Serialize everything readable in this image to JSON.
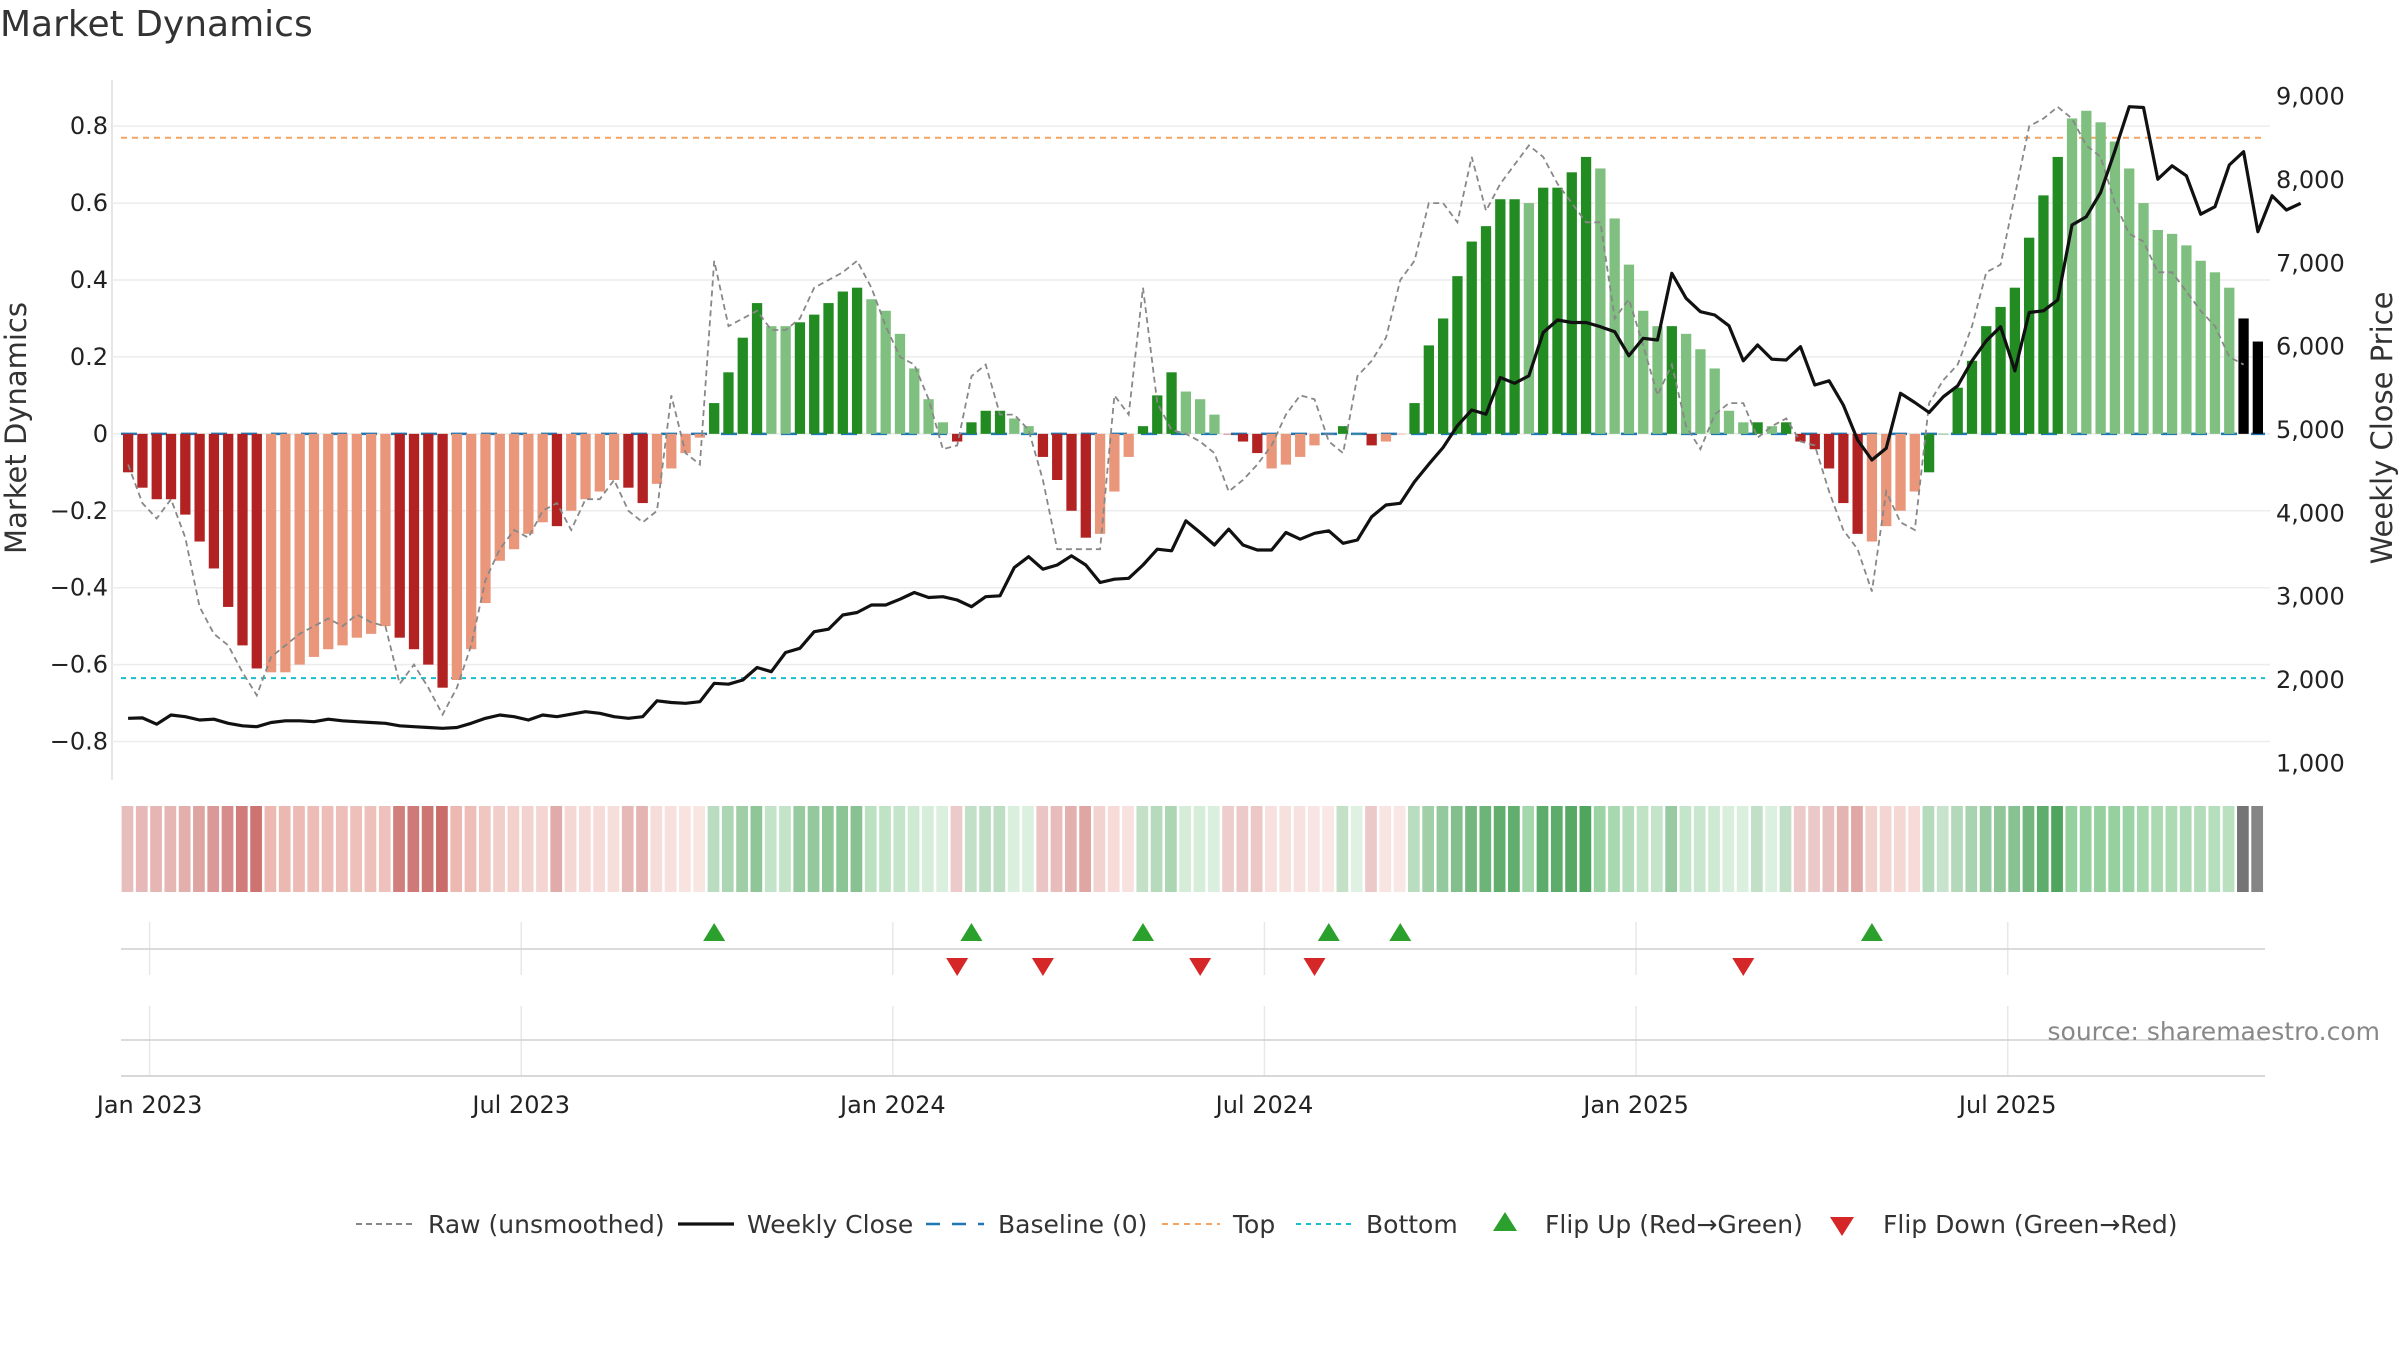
{
  "title": "Market Dynamics",
  "source_note": "source: sharemaestro.com",
  "chart_data": {
    "type": "bar",
    "title": "Market Dynamics",
    "ylabel": "Market Dynamics",
    "y2label": "Weekly Close Price",
    "ylim": [
      -0.9,
      0.92
    ],
    "y2lim": [
      800,
      9200
    ],
    "y_ticks": [
      "0.8",
      "0.6",
      "0.4",
      "0.2",
      "0",
      "−0.2",
      "−0.4",
      "−0.6",
      "−0.8"
    ],
    "y_tick_values": [
      0.8,
      0.6,
      0.4,
      0.2,
      0,
      -0.2,
      -0.4,
      -0.6,
      -0.8
    ],
    "y2_ticks": [
      "9,000",
      "8,000",
      "7,000",
      "6,000",
      "5,000",
      "4,000",
      "3,000",
      "2,000",
      "1,000"
    ],
    "y2_tick_values": [
      9000,
      8000,
      7000,
      6000,
      5000,
      4000,
      3000,
      2000,
      1000
    ],
    "x_ticks": [
      "Jan 2023",
      "Jul 2023",
      "Jan 2024",
      "Jul 2024",
      "Jan 2025",
      "Jul 2025"
    ],
    "x_tick_weeks": [
      2,
      28,
      54,
      80,
      106,
      132
    ],
    "top_level": 0.77,
    "bottom_level": -0.635,
    "grid": true,
    "legend_position": "bottom",
    "colors": {
      "strong_red": "#b22222",
      "light_red": "#e9967a",
      "strong_green": "#228b22",
      "light_green": "#7fbf7f",
      "close_line": "#111111",
      "raw_line": "#888888",
      "baseline": "#1f77b4",
      "top": "#f4a460",
      "bottom": "#17becf",
      "flip_up": "#2ca02c",
      "flip_down": "#d62728"
    },
    "series": [
      {
        "name": "Market Dynamics",
        "values": [
          -0.1,
          -0.14,
          -0.17,
          -0.17,
          -0.21,
          -0.28,
          -0.35,
          -0.45,
          -0.55,
          -0.61,
          -0.62,
          -0.62,
          -0.6,
          -0.58,
          -0.56,
          -0.55,
          -0.53,
          -0.52,
          -0.5,
          -0.53,
          -0.56,
          -0.6,
          -0.66,
          -0.64,
          -0.56,
          -0.44,
          -0.33,
          -0.3,
          -0.26,
          -0.23,
          -0.24,
          -0.2,
          -0.17,
          -0.15,
          -0.12,
          -0.14,
          -0.18,
          -0.13,
          -0.09,
          -0.05,
          -0.01,
          0.08,
          0.16,
          0.25,
          0.34,
          0.28,
          0.28,
          0.29,
          0.31,
          0.34,
          0.37,
          0.38,
          0.35,
          0.32,
          0.26,
          0.17,
          0.09,
          0.03,
          -0.02,
          0.03,
          0.06,
          0.06,
          0.04,
          0.02,
          -0.06,
          -0.12,
          -0.2,
          -0.27,
          -0.26,
          -0.15,
          -0.06,
          0.02,
          0.1,
          0.16,
          0.11,
          0.09,
          0.05,
          0.0,
          -0.02,
          -0.05,
          -0.09,
          -0.08,
          -0.06,
          -0.03,
          0.0,
          0.02,
          0.0,
          -0.03,
          -0.02,
          0.0,
          0.08,
          0.23,
          0.3,
          0.41,
          0.5,
          0.54,
          0.61,
          0.61,
          0.6,
          0.64,
          0.64,
          0.68,
          0.72,
          0.69,
          0.56,
          0.44,
          0.32,
          0.28,
          0.28,
          0.26,
          0.22,
          0.17,
          0.06,
          0.03,
          0.03,
          0.02,
          0.03,
          -0.02,
          -0.04,
          -0.09,
          -0.18,
          -0.26,
          -0.28,
          -0.24,
          -0.2,
          -0.15,
          -0.1,
          0.0,
          0.12,
          0.19,
          0.28,
          0.33,
          0.38,
          0.51,
          0.62,
          0.72,
          0.82,
          0.84,
          0.81,
          0.76,
          0.69,
          0.6,
          0.53,
          0.52,
          0.49,
          0.45,
          0.42,
          0.38,
          0.3,
          0.24
        ],
        "colors": [
          "strong_red",
          "strong_red",
          "strong_red",
          "strong_red",
          "strong_red",
          "strong_red",
          "strong_red",
          "strong_red",
          "strong_red",
          "strong_red",
          "light_red",
          "light_red",
          "light_red",
          "light_red",
          "light_red",
          "light_red",
          "light_red",
          "light_red",
          "light_red",
          "strong_red",
          "strong_red",
          "strong_red",
          "strong_red",
          "light_red",
          "light_red",
          "light_red",
          "light_red",
          "light_red",
          "light_red",
          "light_red",
          "strong_red",
          "light_red",
          "light_red",
          "light_red",
          "light_red",
          "strong_red",
          "strong_red",
          "light_red",
          "light_red",
          "light_red",
          "light_red",
          "strong_green",
          "strong_green",
          "strong_green",
          "strong_green",
          "light_green",
          "light_green",
          "strong_green",
          "strong_green",
          "strong_green",
          "strong_green",
          "strong_green",
          "light_green",
          "light_green",
          "light_green",
          "light_green",
          "light_green",
          "light_green",
          "strong_red",
          "strong_green",
          "strong_green",
          "strong_green",
          "light_green",
          "light_green",
          "strong_red",
          "strong_red",
          "strong_red",
          "strong_red",
          "light_red",
          "light_red",
          "light_red",
          "strong_green",
          "strong_green",
          "strong_green",
          "light_green",
          "light_green",
          "light_green",
          "strong_red",
          "strong_red",
          "strong_red",
          "light_red",
          "light_red",
          "light_red",
          "light_red",
          "light_red",
          "strong_green",
          "light_green",
          "strong_red",
          "light_red",
          "light_red",
          "strong_green",
          "strong_green",
          "strong_green",
          "strong_green",
          "strong_green",
          "strong_green",
          "strong_green",
          "strong_green",
          "light_green",
          "strong_green",
          "strong_green",
          "strong_green",
          "strong_green",
          "light_green",
          "light_green",
          "light_green",
          "light_green",
          "light_green",
          "strong_green",
          "light_green",
          "light_green",
          "light_green",
          "light_green",
          "light_green",
          "strong_green",
          "light_green",
          "strong_green",
          "strong_red",
          "strong_red",
          "strong_red",
          "strong_red",
          "strong_red",
          "light_red",
          "light_red",
          "light_red",
          "light_red",
          "strong_green",
          "strong_green",
          "strong_green",
          "strong_green",
          "strong_green",
          "strong_green",
          "strong_green",
          "strong_green",
          "strong_green",
          "strong_green",
          "light_green",
          "light_green",
          "light_green",
          "light_green",
          "light_green",
          "light_green",
          "light_green",
          "light_green",
          "light_green",
          "light_green",
          "light_green",
          "light_green"
        ]
      },
      {
        "name": "Raw (unsmoothed)",
        "values": [
          -0.08,
          -0.18,
          -0.22,
          -0.17,
          -0.27,
          -0.45,
          -0.52,
          -0.55,
          -0.62,
          -0.68,
          -0.58,
          -0.55,
          -0.52,
          -0.5,
          -0.48,
          -0.5,
          -0.47,
          -0.49,
          -0.5,
          -0.65,
          -0.6,
          -0.66,
          -0.73,
          -0.66,
          -0.55,
          -0.38,
          -0.3,
          -0.25,
          -0.27,
          -0.2,
          -0.18,
          -0.25,
          -0.17,
          -0.17,
          -0.12,
          -0.2,
          -0.23,
          -0.2,
          0.1,
          -0.05,
          -0.08,
          0.45,
          0.28,
          0.3,
          0.32,
          0.27,
          0.27,
          0.3,
          0.38,
          0.4,
          0.42,
          0.45,
          0.38,
          0.28,
          0.2,
          0.18,
          0.09,
          -0.04,
          -0.03,
          0.15,
          0.18,
          0.05,
          0.05,
          0.01,
          -0.12,
          -0.3,
          -0.3,
          -0.3,
          -0.3,
          0.1,
          0.05,
          0.38,
          0.08,
          0.01,
          0.0,
          -0.02,
          -0.05,
          -0.15,
          -0.12,
          -0.08,
          -0.03,
          0.05,
          0.1,
          0.09,
          -0.02,
          -0.05,
          0.15,
          0.19,
          0.25,
          0.4,
          0.45,
          0.6,
          0.6,
          0.55,
          0.72,
          0.58,
          0.65,
          0.7,
          0.75,
          0.72,
          0.65,
          0.6,
          0.55,
          0.55,
          0.3,
          0.35,
          0.23,
          0.1,
          0.18,
          0.02,
          -0.04,
          0.05,
          0.08,
          0.08,
          -0.01,
          0.02,
          0.04,
          -0.02,
          -0.03,
          -0.15,
          -0.25,
          -0.3,
          -0.41,
          -0.15,
          -0.23,
          -0.25,
          0.08,
          0.14,
          0.18,
          0.28,
          0.42,
          0.44,
          0.62,
          0.8,
          0.82,
          0.85,
          0.82,
          0.75,
          0.72,
          0.6,
          0.52,
          0.5,
          0.42,
          0.42,
          0.37,
          0.32,
          0.28,
          0.2,
          0.18
        ]
      },
      {
        "name": "Weekly Close",
        "values": [
          1540,
          1545,
          1470,
          1580,
          1560,
          1520,
          1530,
          1480,
          1450,
          1440,
          1490,
          1510,
          1510,
          1500,
          1530,
          1510,
          1500,
          1490,
          1480,
          1450,
          1440,
          1430,
          1420,
          1430,
          1480,
          1540,
          1580,
          1560,
          1520,
          1580,
          1560,
          1590,
          1620,
          1600,
          1560,
          1540,
          1560,
          1750,
          1730,
          1720,
          1740,
          1960,
          1950,
          2000,
          2150,
          2100,
          2330,
          2380,
          2580,
          2610,
          2780,
          2810,
          2900,
          2900,
          2970,
          3050,
          2990,
          3000,
          2960,
          2880,
          3000,
          3010,
          3350,
          3480,
          3330,
          3380,
          3490,
          3380,
          3170,
          3210,
          3220,
          3380,
          3570,
          3550,
          3910,
          3770,
          3620,
          3810,
          3620,
          3560,
          3560,
          3770,
          3690,
          3760,
          3790,
          3640,
          3680,
          3960,
          4100,
          4120,
          4380,
          4590,
          4790,
          5050,
          5240,
          5190,
          5630,
          5560,
          5650,
          6170,
          6320,
          6290,
          6290,
          6240,
          6180,
          5890,
          6100,
          6080,
          6880,
          6580,
          6420,
          6380,
          6250,
          5830,
          6020,
          5850,
          5840,
          6000,
          5540,
          5590,
          5300,
          4880,
          4640,
          4780,
          5440,
          5330,
          5210,
          5400,
          5530,
          5830,
          6070,
          6240,
          5710,
          6410,
          6430,
          6560,
          7460,
          7560,
          7850,
          8350,
          8880,
          8870,
          8010,
          8170,
          8050,
          7590,
          7680,
          8180,
          8340,
          7380,
          7810,
          7640,
          7720
        ],
        "axis": "right"
      },
      {
        "name": "Baseline (0)",
        "value": 0
      },
      {
        "name": "Top",
        "value": 0.77
      },
      {
        "name": "Bottom",
        "value": -0.635
      },
      {
        "name": "Flip Up (Red→Green)",
        "weeks": [
          41,
          59,
          71,
          84,
          89,
          122
        ]
      },
      {
        "name": "Flip Down (Green→Red)",
        "weeks": [
          58,
          64,
          75,
          83,
          113
        ]
      }
    ],
    "legend": [
      "Raw (unsmoothed)",
      "Weekly Close",
      "Baseline (0)",
      "Top",
      "Bottom",
      "Flip Up (Red→Green)",
      "Flip Down (Green→Red)"
    ]
  }
}
